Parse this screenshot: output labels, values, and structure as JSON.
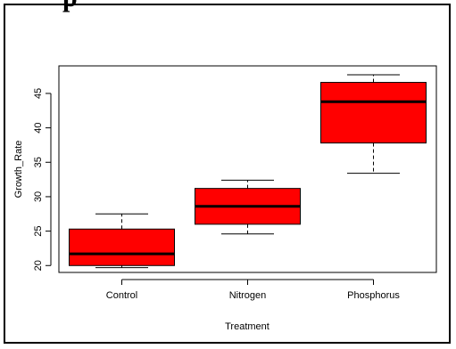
{
  "header": {
    "title_fragment": "p"
  },
  "chart_data": {
    "type": "boxplot",
    "xlabel": "Treatment",
    "ylabel": "Growth_Rate",
    "ylim": [
      19,
      49
    ],
    "yticks": [
      20,
      25,
      30,
      35,
      40,
      45
    ],
    "box_color": "#ff0000",
    "categories": [
      "Control",
      "Nitrogen",
      "Phosphorus"
    ],
    "boxes": [
      {
        "min": 19.7,
        "q1": 20.0,
        "median": 21.7,
        "q3": 25.3,
        "max": 27.5
      },
      {
        "min": 24.6,
        "q1": 26.0,
        "median": 28.6,
        "q3": 31.2,
        "max": 32.4
      },
      {
        "min": 33.4,
        "q1": 37.8,
        "median": 43.8,
        "q3": 46.6,
        "max": 47.7
      }
    ]
  }
}
